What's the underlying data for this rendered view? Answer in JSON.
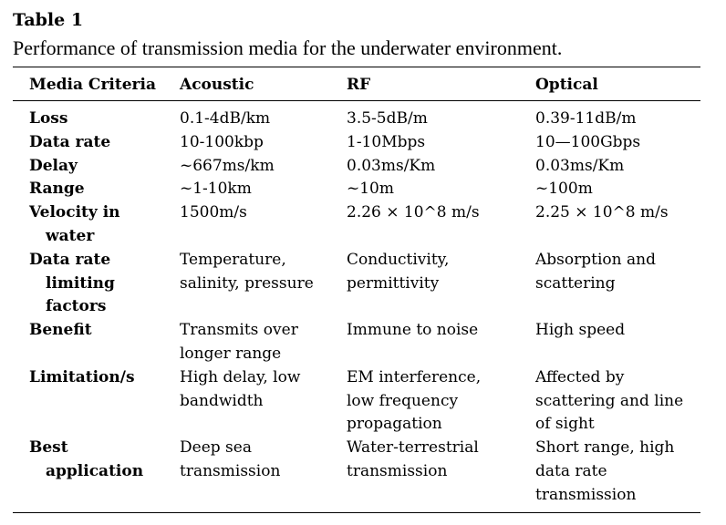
{
  "table": {
    "label": "Table 1",
    "caption": "Performance of transmission media for the underwater environment.",
    "headers": [
      "Media Criteria",
      "Acoustic",
      "RF",
      "Optical"
    ],
    "rows": [
      {
        "criteria": [
          "Loss"
        ],
        "acoustic": [
          "0.1-4dB/km"
        ],
        "rf": [
          "3.5-5dB/m"
        ],
        "optical": [
          "0.39-11dB/m"
        ]
      },
      {
        "criteria": [
          "Data rate"
        ],
        "acoustic": [
          "10-100kbp"
        ],
        "rf": [
          "1-10Mbps"
        ],
        "optical": [
          "10—100Gbps"
        ]
      },
      {
        "criteria": [
          "Delay"
        ],
        "acoustic": [
          "~667ms/km"
        ],
        "rf": [
          "0.03ms/Km"
        ],
        "optical": [
          "0.03ms/Km"
        ]
      },
      {
        "criteria": [
          "Range"
        ],
        "acoustic": [
          "~1-10km"
        ],
        "rf": [
          "~10m"
        ],
        "optical": [
          "~100m"
        ]
      },
      {
        "criteria": [
          "Velocity in",
          "water"
        ],
        "acoustic": [
          "1500m/s"
        ],
        "rf": [
          "2.26 × 10^8 m/s"
        ],
        "optical": [
          "2.25 × 10^8 m/s"
        ]
      },
      {
        "criteria": [
          "Data rate",
          "limiting",
          "factors"
        ],
        "acoustic": [
          "Temperature,",
          "salinity, pressure"
        ],
        "rf": [
          "Conductivity,",
          "permittivity"
        ],
        "optical": [
          "Absorption and",
          "scattering"
        ]
      },
      {
        "criteria": [
          "Benefit"
        ],
        "acoustic": [
          "Transmits over",
          "longer range"
        ],
        "rf": [
          "Immune to noise"
        ],
        "optical": [
          "High speed"
        ]
      },
      {
        "criteria": [
          "Limitation/s"
        ],
        "acoustic": [
          "High delay, low",
          "bandwidth"
        ],
        "rf": [
          "EM interference,",
          "low frequency",
          "propagation"
        ],
        "optical": [
          "Affected by",
          "scattering and line",
          "of sight"
        ]
      },
      {
        "criteria": [
          "Best",
          "application"
        ],
        "acoustic": [
          "Deep sea",
          "transmission"
        ],
        "rf": [
          "Water-terrestrial",
          "transmission"
        ],
        "optical": [
          "Short range, high",
          "data rate",
          "transmission"
        ]
      }
    ]
  }
}
